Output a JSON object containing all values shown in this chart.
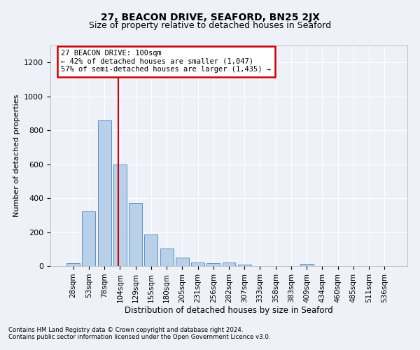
{
  "title": "27, BEACON DRIVE, SEAFORD, BN25 2JX",
  "subtitle": "Size of property relative to detached houses in Seaford",
  "xlabel": "Distribution of detached houses by size in Seaford",
  "ylabel": "Number of detached properties",
  "footnote1": "Contains HM Land Registry data © Crown copyright and database right 2024.",
  "footnote2": "Contains public sector information licensed under the Open Government Licence v3.0.",
  "bar_labels": [
    "28sqm",
    "53sqm",
    "78sqm",
    "104sqm",
    "129sqm",
    "155sqm",
    "180sqm",
    "205sqm",
    "231sqm",
    "256sqm",
    "282sqm",
    "307sqm",
    "333sqm",
    "358sqm",
    "383sqm",
    "409sqm",
    "434sqm",
    "460sqm",
    "485sqm",
    "511sqm",
    "536sqm"
  ],
  "bar_values": [
    15,
    320,
    860,
    600,
    370,
    185,
    105,
    50,
    22,
    18,
    20,
    10,
    0,
    0,
    0,
    12,
    0,
    0,
    0,
    0,
    0
  ],
  "bar_color": "#b8d0ea",
  "bar_edge_color": "#6090c0",
  "ylim": [
    0,
    1300
  ],
  "yticks": [
    0,
    200,
    400,
    600,
    800,
    1000,
    1200
  ],
  "annotation_text": "27 BEACON DRIVE: 100sqm\n← 42% of detached houses are smaller (1,047)\n57% of semi-detached houses are larger (1,435) →",
  "annotation_box_color": "#ffffff",
  "annotation_box_edge": "#cc0000",
  "vline_color": "#cc0000",
  "background_color": "#eef2f8",
  "grid_color": "#ffffff",
  "title_fontsize": 10,
  "subtitle_fontsize": 9,
  "bar_width": 0.85,
  "vline_x": 2.88
}
